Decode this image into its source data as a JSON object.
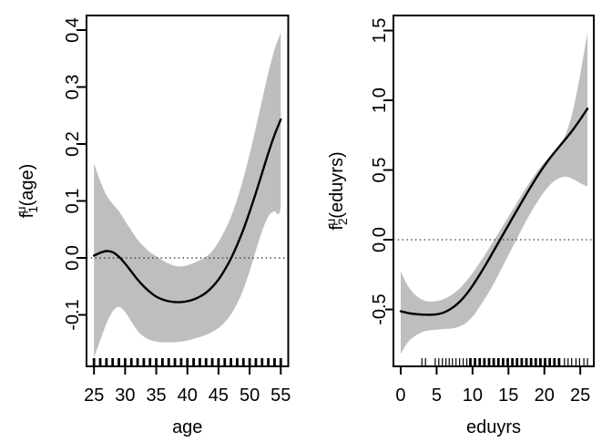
{
  "figure": {
    "background": "#ffffff",
    "colors": {
      "band": "#bebebe",
      "curve": "#000000",
      "axis": "#000000",
      "zero_line": "#3f3f3f"
    }
  },
  "chart_data": [
    {
      "type": "line",
      "name": "f1-age",
      "xlabel": "age",
      "ylabel": {
        "base": "f",
        "sub": "1",
        "sup": "μ",
        "args": "(age)"
      },
      "xlim": [
        23.8,
        56.2
      ],
      "ylim": [
        -0.1904,
        0.4256
      ],
      "xticks": [
        25,
        30,
        35,
        40,
        45,
        50,
        55
      ],
      "yticks": [
        "-0.1",
        "0.0",
        "0.1",
        "0.2",
        "0.3",
        "0.4"
      ],
      "zero_line_y": 0,
      "fit": {
        "x": [
          25,
          26,
          27,
          28,
          29,
          30,
          31,
          32,
          33,
          34,
          35,
          36,
          37,
          38,
          39,
          40,
          41,
          42,
          43,
          44,
          45,
          46,
          47,
          48,
          49,
          50,
          51,
          52,
          53,
          54,
          55
        ],
        "y": [
          0.004,
          0.009,
          0.012,
          0.01,
          0.002,
          -0.01,
          -0.024,
          -0.038,
          -0.05,
          -0.06,
          -0.068,
          -0.073,
          -0.076,
          -0.0775,
          -0.0775,
          -0.076,
          -0.073,
          -0.068,
          -0.061,
          -0.051,
          -0.038,
          -0.021,
          -0.001,
          0.023,
          0.05,
          0.081,
          0.114,
          0.149,
          0.184,
          0.216,
          0.243
        ]
      },
      "band": {
        "x": [
          25,
          26,
          27,
          28,
          29,
          30,
          31,
          32,
          33,
          34,
          35,
          36,
          37,
          38,
          39,
          40,
          41,
          42,
          43,
          44,
          45,
          46,
          47,
          48,
          49,
          50,
          51,
          52,
          53,
          54,
          54.4,
          54.8,
          55
        ],
        "upper": [
          0.166,
          0.135,
          0.11,
          0.095,
          0.082,
          0.065,
          0.048,
          0.032,
          0.02,
          0.01,
          0.003,
          -0.004,
          -0.01,
          -0.014,
          -0.015,
          -0.013,
          -0.009,
          -0.004,
          0.002,
          0.012,
          0.028,
          0.048,
          0.072,
          0.103,
          0.14,
          0.182,
          0.229,
          0.277,
          0.325,
          0.366,
          0.378,
          0.39,
          0.395
        ],
        "lower": [
          -0.175,
          -0.145,
          -0.115,
          -0.094,
          -0.086,
          -0.095,
          -0.112,
          -0.128,
          -0.138,
          -0.144,
          -0.147,
          -0.148,
          -0.148,
          -0.148,
          -0.147,
          -0.145,
          -0.142,
          -0.139,
          -0.135,
          -0.13,
          -0.123,
          -0.113,
          -0.099,
          -0.08,
          -0.055,
          -0.023,
          0.013,
          0.047,
          0.073,
          0.082,
          0.077,
          0.079,
          0.09
        ]
      },
      "rug": {
        "thick": [
          25,
          26,
          27,
          28,
          29,
          30,
          31,
          32,
          33,
          34,
          35,
          36,
          37,
          38,
          39,
          40,
          41,
          42,
          43,
          44,
          45,
          46,
          47,
          48,
          49,
          50,
          51,
          52,
          53,
          54,
          55
        ],
        "thin": []
      }
    },
    {
      "type": "line",
      "name": "f2-eduyrs",
      "xlabel": "eduyrs",
      "ylabel": {
        "base": "f",
        "sub": "2",
        "sup": "μ",
        "args": "(eduyrs)"
      },
      "xlim": [
        -1.014,
        26.88
      ],
      "ylim": [
        -0.908,
        1.608
      ],
      "xticks": [
        0,
        5,
        10,
        15,
        20,
        25
      ],
      "yticks": [
        "-0.5",
        "0.0",
        "0.5",
        "1.0",
        "1.5"
      ],
      "zero_line_y": 0,
      "fit": {
        "x": [
          0,
          1,
          2,
          3,
          4,
          5,
          6,
          7,
          8,
          9,
          10,
          11,
          12,
          13,
          14,
          15,
          16,
          17,
          18,
          19,
          20,
          21,
          22,
          23,
          24,
          25,
          26
        ],
        "y": [
          -0.513,
          -0.525,
          -0.533,
          -0.537,
          -0.538,
          -0.535,
          -0.522,
          -0.495,
          -0.455,
          -0.4,
          -0.33,
          -0.25,
          -0.165,
          -0.075,
          0.015,
          0.105,
          0.195,
          0.283,
          0.37,
          0.453,
          0.53,
          0.6,
          0.663,
          0.725,
          0.79,
          0.863,
          0.94
        ]
      },
      "band": {
        "x": [
          0,
          1,
          2,
          3,
          4,
          5,
          6,
          7,
          8,
          9,
          10,
          11,
          12,
          13,
          14,
          15,
          16,
          17,
          18,
          19,
          20,
          21,
          22,
          23,
          24,
          25,
          26
        ],
        "upper": [
          -0.228,
          -0.33,
          -0.395,
          -0.43,
          -0.443,
          -0.44,
          -0.425,
          -0.398,
          -0.36,
          -0.305,
          -0.24,
          -0.165,
          -0.085,
          -0.003,
          0.08,
          0.165,
          0.25,
          0.335,
          0.415,
          0.49,
          0.556,
          0.615,
          0.675,
          0.76,
          0.93,
          1.19,
          1.485
        ],
        "lower": [
          -0.82,
          -0.735,
          -0.69,
          -0.662,
          -0.65,
          -0.645,
          -0.64,
          -0.638,
          -0.625,
          -0.6,
          -0.552,
          -0.48,
          -0.4,
          -0.31,
          -0.21,
          -0.11,
          -0.01,
          0.09,
          0.185,
          0.27,
          0.345,
          0.405,
          0.44,
          0.452,
          0.435,
          0.405,
          0.382
        ]
      },
      "rug": {
        "thick": [
          9.7,
          10.35,
          11.0,
          11.65,
          12.3,
          12.95,
          13.6,
          14.25,
          14.9,
          15.55,
          16.2,
          16.85,
          17.5,
          18.15,
          18.8,
          19.45,
          20.1,
          20.75,
          21.4,
          22.05
        ],
        "thin": [
          2.95,
          3.45,
          4.8,
          5.3,
          5.8,
          6.3,
          6.75,
          7.2,
          7.7,
          8.2,
          8.7,
          9.2,
          22.8,
          23.3,
          23.8,
          24.4,
          24.9,
          25.5,
          26.0
        ]
      }
    }
  ]
}
